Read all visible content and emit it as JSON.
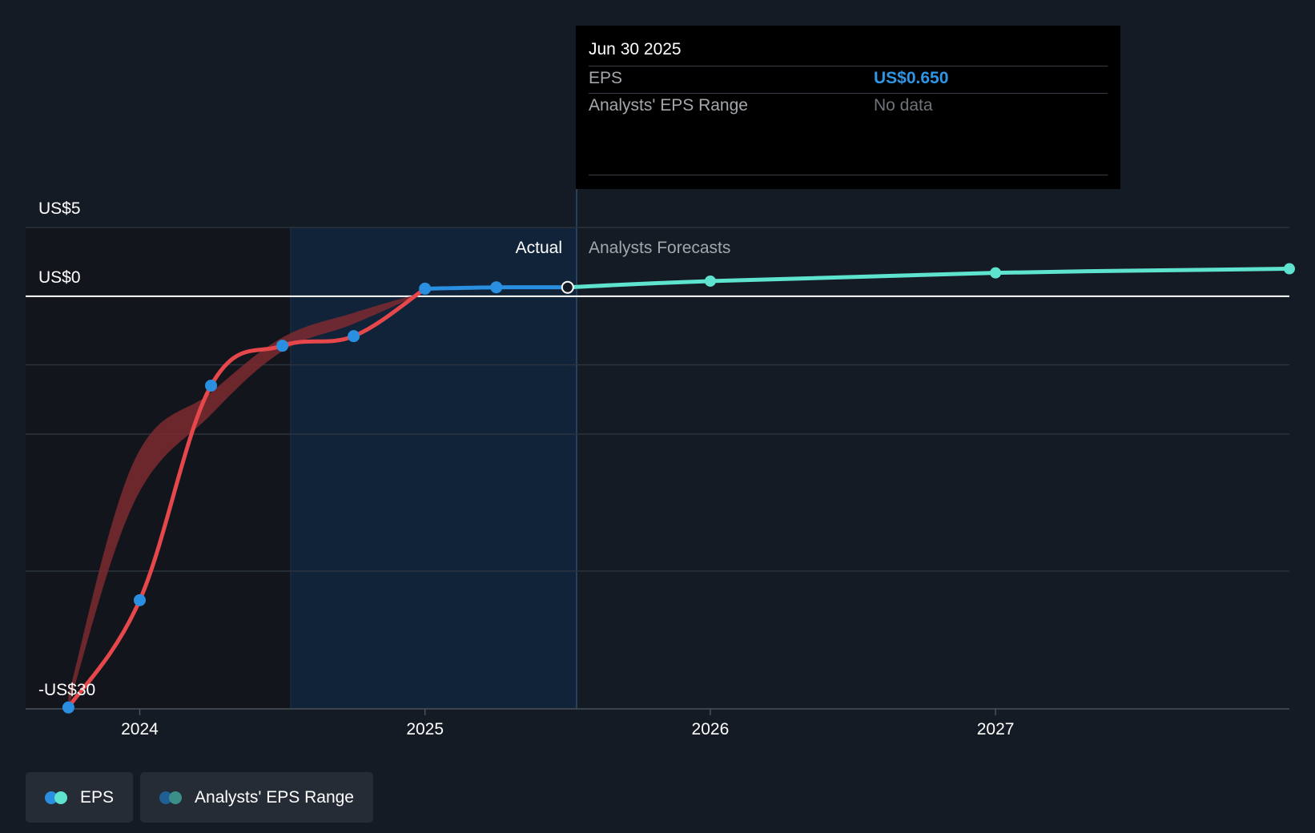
{
  "chart_data": {
    "type": "line",
    "y_ticks": [
      {
        "value": 5,
        "label": "US$5"
      },
      {
        "value": 0,
        "label": "US$0"
      },
      {
        "value": -30,
        "label": "-US$30"
      }
    ],
    "ylim": [
      -30,
      5
    ],
    "x_ticks": [
      {
        "value": 2024,
        "label": "2024"
      },
      {
        "value": 2025,
        "label": "2025"
      },
      {
        "value": 2026,
        "label": "2026"
      },
      {
        "value": 2027,
        "label": "2027"
      }
    ],
    "xlim": [
      2023.6,
      2028.03
    ],
    "section_labels": {
      "actual": "Actual",
      "forecast": "Analysts Forecasts"
    },
    "actual_shade_start": 2024.5,
    "divider_x": 2025.5,
    "series": [
      {
        "name": "EPS",
        "points": [
          {
            "x": 2023.75,
            "y": -29.9
          },
          {
            "x": 2024.0,
            "y": -22.1
          },
          {
            "x": 2024.25,
            "y": -6.5
          },
          {
            "x": 2024.5,
            "y": -3.6
          },
          {
            "x": 2024.75,
            "y": -2.9
          },
          {
            "x": 2025.0,
            "y": 0.55
          },
          {
            "x": 2025.25,
            "y": 0.65
          },
          {
            "x": 2025.5,
            "y": 0.65
          }
        ]
      },
      {
        "name": "EPS Forecast",
        "points": [
          {
            "x": 2025.5,
            "y": 0.65
          },
          {
            "x": 2026.0,
            "y": 1.1
          },
          {
            "x": 2027.0,
            "y": 1.7
          },
          {
            "x": 2028.03,
            "y": 2.0
          }
        ]
      }
    ],
    "past_estimate_band": {
      "upper": [
        [
          2023.75,
          -29.0
        ],
        [
          2023.98,
          -12.0
        ],
        [
          2024.25,
          -7.0
        ],
        [
          2024.5,
          -3.0
        ],
        [
          2024.75,
          -1.2
        ],
        [
          2025.0,
          0.3
        ]
      ],
      "lower": [
        [
          2023.75,
          -29.9
        ],
        [
          2023.98,
          -15.0
        ],
        [
          2024.25,
          -8.6
        ],
        [
          2024.5,
          -4.0
        ],
        [
          2024.75,
          -2.0
        ],
        [
          2025.0,
          0.3
        ]
      ]
    },
    "colors": {
      "actual": "#2a8fe0",
      "forecast": "#5ee3cf",
      "past_estimate": "#e5474b",
      "band": "#7c2a30",
      "gridline": "#2c333d",
      "zero_line": "#ffffff"
    }
  },
  "tooltip": {
    "date": "Jun 30 2025",
    "rows": [
      {
        "label": "EPS",
        "value": "US$0.650"
      },
      {
        "label": "Analysts' EPS Range",
        "value": "No data"
      }
    ]
  },
  "legend": [
    {
      "label": "EPS",
      "dot_colors": [
        "#2a8fe0",
        "#5ee3cf"
      ]
    },
    {
      "label": "Analysts' EPS Range",
      "dot_colors": [
        "#1f5f93",
        "#3b8f88"
      ]
    }
  ]
}
